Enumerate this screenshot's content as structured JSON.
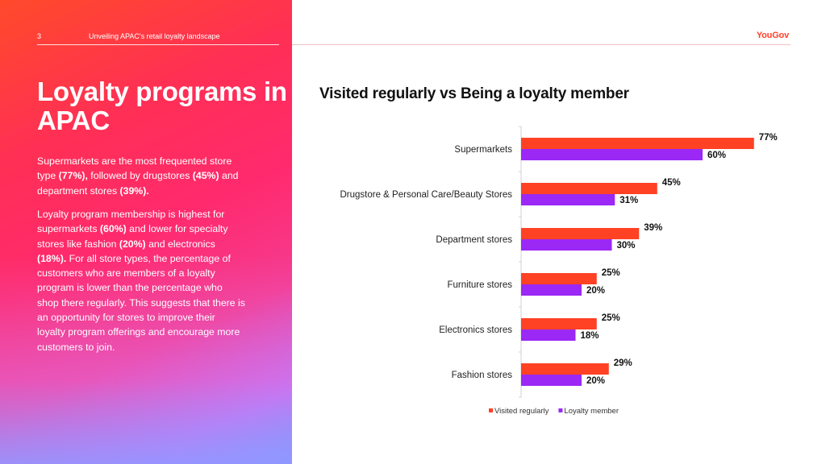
{
  "header": {
    "page_number": "3",
    "title": "Unveiling APAC's retail loyalty landscape",
    "brand": "YouGov"
  },
  "left": {
    "title": "Loyalty programs in APAC",
    "para1": {
      "t1": "Supermarkets are the most frequented store type ",
      "b1": "(77%),",
      "t2": " followed by drugstores ",
      "b2": "(45%)",
      "t3": " and department stores ",
      "b3": "(39%)."
    },
    "para2": {
      "t1": "Loyalty program membership is highest for supermarkets ",
      "b1": "(60%)",
      "t2": " and lower for specialty stores like fashion ",
      "b2": "(20%)",
      "t3": " and electronics ",
      "b3": "(18%).",
      "t4": " For all store types, the percentage of customers who are members of a loyalty program is lower than the percentage who shop there regularly. This suggests that there is an opportunity for stores to improve their loyalty program offerings and encourage more customers to join."
    }
  },
  "colors": {
    "visited": "#ff4124",
    "loyalty": "#9b28f5"
  },
  "chart_data": {
    "type": "bar",
    "orientation": "horizontal",
    "title": "Visited regularly vs Being a loyalty member",
    "categories": [
      "Supermarkets",
      "Drugstore & Personal Care/Beauty Stores",
      "Department stores",
      "Furniture stores",
      "Electronics stores",
      "Fashion stores"
    ],
    "series": [
      {
        "name": "Visited regularly",
        "values": [
          77,
          45,
          39,
          25,
          25,
          29
        ],
        "labels": [
          "77%",
          "45%",
          "39%",
          "25%",
          "25%",
          "29%"
        ]
      },
      {
        "name": "Loyalty member",
        "values": [
          60,
          31,
          30,
          20,
          18,
          20
        ],
        "labels": [
          "60%",
          "31%",
          "30%",
          "20%",
          "18%",
          "20%"
        ]
      }
    ],
    "value_unit": "%",
    "xlim": [
      0,
      80
    ],
    "legend": "bottom-center",
    "grid": false
  }
}
